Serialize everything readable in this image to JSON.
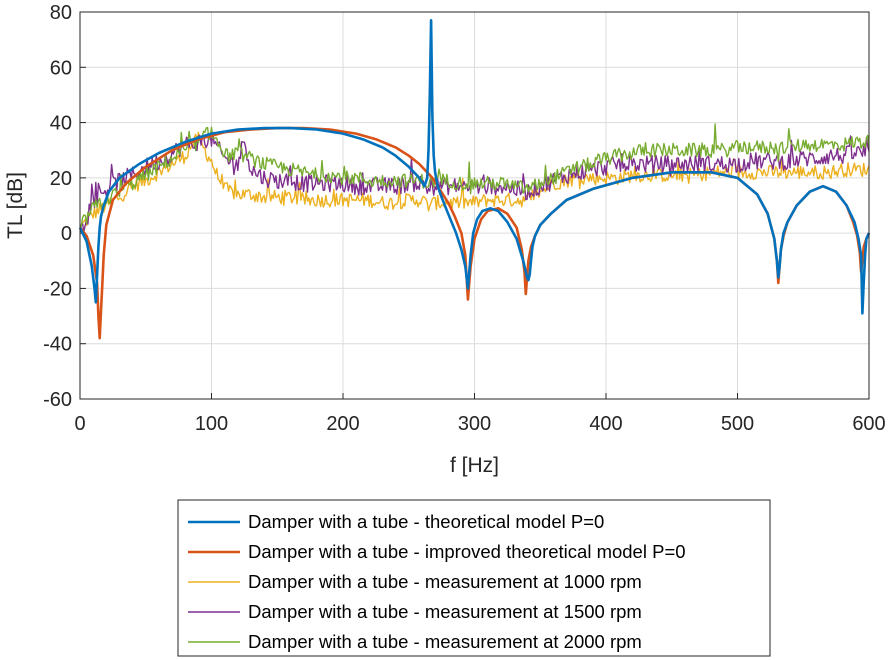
{
  "chart_data": {
    "type": "line",
    "title": "",
    "xlabel": "f [Hz]",
    "ylabel": "TL [dB]",
    "xlim": [
      0,
      600
    ],
    "ylim": [
      -60,
      80
    ],
    "xticks": [
      "0",
      "100",
      "200",
      "300",
      "400",
      "500",
      "600"
    ],
    "yticks": [
      "-60",
      "-40",
      "-20",
      "0",
      "20",
      "40",
      "60",
      "80"
    ],
    "grid": true,
    "legend_position": "bottom",
    "series": [
      {
        "name": "Damper with a tube - theoretical model P=0",
        "color": "#0072BD",
        "x": [
          0,
          5,
          9,
          11,
          12,
          13,
          14,
          15,
          16,
          18,
          22,
          30,
          45,
          60,
          80,
          100,
          120,
          140,
          160,
          180,
          200,
          215,
          230,
          240,
          250,
          258,
          262,
          264,
          265,
          266,
          267,
          268,
          269,
          270,
          272,
          275,
          280,
          286,
          290,
          293,
          295,
          297,
          299,
          302,
          306,
          312,
          318,
          325,
          332,
          337,
          340,
          341,
          342,
          343,
          344,
          346,
          350,
          358,
          370,
          390,
          420,
          450,
          480,
          500,
          515,
          523,
          528,
          530,
          531,
          532,
          533,
          535,
          538,
          545,
          555,
          565,
          575,
          583,
          589,
          592,
          594,
          595,
          596,
          597,
          598,
          600
        ],
        "y": [
          2,
          -3,
          -12,
          -20,
          -25,
          -15,
          -5,
          2,
          6,
          10,
          15,
          20,
          25,
          29,
          33,
          36,
          37.5,
          38,
          38,
          37.5,
          36,
          34,
          31,
          28,
          24,
          20,
          17,
          20,
          30,
          50,
          77,
          42,
          28,
          22,
          17,
          13,
          7,
          0,
          -6,
          -12,
          -20,
          -8,
          0,
          5,
          8,
          9,
          8,
          4,
          -2,
          -10,
          -16,
          -17,
          -15,
          -10,
          -5,
          -1,
          3,
          7,
          12,
          16,
          20,
          22,
          22,
          20,
          14,
          7,
          -2,
          -10,
          -16,
          -12,
          -6,
          0,
          4,
          10,
          15,
          17,
          15,
          10,
          4,
          -2,
          -8,
          -29,
          -18,
          -8,
          -2,
          0
        ]
      },
      {
        "name": "Damper with a tube - improved theoretical model P=0",
        "color": "#D95319",
        "x": [
          0,
          5,
          10,
          13,
          14,
          15,
          16,
          17,
          18,
          20,
          25,
          35,
          50,
          70,
          90,
          110,
          130,
          150,
          170,
          190,
          210,
          225,
          240,
          250,
          258,
          264,
          268,
          272,
          276,
          280,
          285,
          290,
          293,
          295,
          297,
          300,
          305,
          310,
          318,
          325,
          332,
          336,
          338,
          339,
          340,
          341,
          343,
          346,
          350,
          358,
          370,
          390,
          420,
          450,
          480,
          500,
          515,
          523,
          528,
          530,
          531,
          532,
          533,
          535,
          538,
          545,
          555,
          565,
          575,
          583,
          588,
          591,
          593,
          594,
          595,
          596,
          598,
          600
        ],
        "y": [
          2,
          -1,
          -8,
          -18,
          -30,
          -38,
          -28,
          -18,
          -8,
          3,
          12,
          18,
          24,
          30,
          34,
          36.5,
          37.5,
          38,
          38,
          37.5,
          36,
          34,
          31,
          28,
          25,
          22,
          20,
          17,
          14,
          11,
          6,
          0,
          -8,
          -24,
          -12,
          -2,
          5,
          8,
          9,
          7,
          2,
          -6,
          -14,
          -22,
          -16,
          -10,
          -5,
          -1,
          3,
          7,
          12,
          16,
          20,
          22,
          22,
          20,
          14,
          7,
          -2,
          -10,
          -18,
          -12,
          -6,
          -1,
          4,
          10,
          15,
          17,
          15,
          10,
          4,
          -1,
          -7,
          -14,
          -10,
          -5,
          -2,
          0
        ]
      },
      {
        "name": "Damper with a tube - measurement at 1000 rpm",
        "color": "#EDB120",
        "x": [
          0,
          10,
          20,
          30,
          40,
          50,
          60,
          70,
          80,
          85,
          90,
          95,
          100,
          105,
          110,
          120,
          130,
          140,
          150,
          160,
          170,
          180,
          190,
          200,
          210,
          220,
          230,
          240,
          250,
          260,
          265,
          270,
          280,
          290,
          300,
          310,
          320,
          330,
          340,
          350,
          360,
          370,
          380,
          390,
          400,
          410,
          420,
          430,
          440,
          450,
          460,
          470,
          480,
          490,
          500,
          510,
          520,
          530,
          540,
          550,
          560,
          570,
          580,
          590,
          600
        ],
        "y": [
          2,
          7,
          10,
          13,
          17,
          19,
          22,
          25,
          28,
          32,
          34,
          30,
          26,
          20,
          16,
          14,
          14,
          13,
          13,
          13,
          12,
          12,
          12,
          12,
          12,
          12,
          11,
          11,
          12,
          12,
          10,
          11,
          11,
          11,
          11,
          12,
          12,
          12,
          12,
          15,
          18,
          19,
          20,
          20,
          20,
          20,
          21,
          21,
          21,
          21,
          21,
          21,
          22,
          22,
          22,
          22,
          22,
          22,
          22,
          22,
          22,
          22,
          23,
          23,
          23
        ]
      },
      {
        "name": "Damper with a tube - measurement at 1500 rpm",
        "color": "#7E2F8E",
        "x": [
          0,
          10,
          20,
          30,
          40,
          50,
          60,
          70,
          80,
          90,
          100,
          110,
          120,
          125,
          130,
          140,
          150,
          160,
          170,
          180,
          190,
          200,
          210,
          220,
          230,
          240,
          250,
          260,
          265,
          270,
          280,
          290,
          300,
          310,
          320,
          330,
          340,
          350,
          360,
          370,
          380,
          390,
          400,
          410,
          420,
          430,
          440,
          450,
          460,
          470,
          480,
          490,
          500,
          510,
          520,
          530,
          540,
          550,
          560,
          570,
          580,
          590,
          600
        ],
        "y": [
          2,
          12,
          16,
          19,
          21,
          24,
          26,
          29,
          32,
          33,
          34,
          27,
          25,
          34,
          23,
          20,
          19,
          19,
          18,
          18,
          18,
          18,
          17,
          17,
          17,
          17,
          18,
          18,
          16,
          17,
          17,
          17,
          17,
          17,
          17,
          16,
          15,
          17,
          19,
          21,
          22,
          23,
          24,
          25,
          25,
          25,
          25,
          25,
          25,
          25,
          25,
          25,
          25,
          26,
          26,
          26,
          26,
          27,
          27,
          28,
          28,
          29,
          29
        ]
      },
      {
        "name": "Damper with a tube - measurement at 2000 rpm",
        "color": "#77AC30",
        "x": [
          0,
          10,
          20,
          30,
          40,
          50,
          60,
          70,
          80,
          90,
          100,
          105,
          110,
          120,
          130,
          140,
          150,
          160,
          170,
          180,
          190,
          200,
          210,
          220,
          230,
          240,
          250,
          260,
          265,
          270,
          280,
          290,
          300,
          310,
          320,
          330,
          340,
          350,
          360,
          370,
          380,
          390,
          400,
          410,
          420,
          430,
          440,
          450,
          460,
          470,
          480,
          490,
          500,
          510,
          520,
          530,
          540,
          550,
          560,
          570,
          580,
          590,
          600
        ],
        "y": [
          2,
          9,
          12,
          15,
          18,
          21,
          24,
          27,
          30,
          33,
          37,
          32,
          28,
          29,
          27,
          25,
          24,
          23,
          22,
          21,
          21,
          20,
          20,
          19,
          19,
          19,
          19,
          19,
          18,
          19,
          19,
          18,
          18,
          18,
          18,
          17,
          16,
          18,
          20,
          22,
          24,
          25,
          27,
          28,
          29,
          30,
          30,
          30,
          30,
          30,
          30,
          30,
          31,
          31,
          31,
          31,
          31,
          32,
          32,
          32,
          32,
          33,
          33
        ]
      }
    ]
  }
}
